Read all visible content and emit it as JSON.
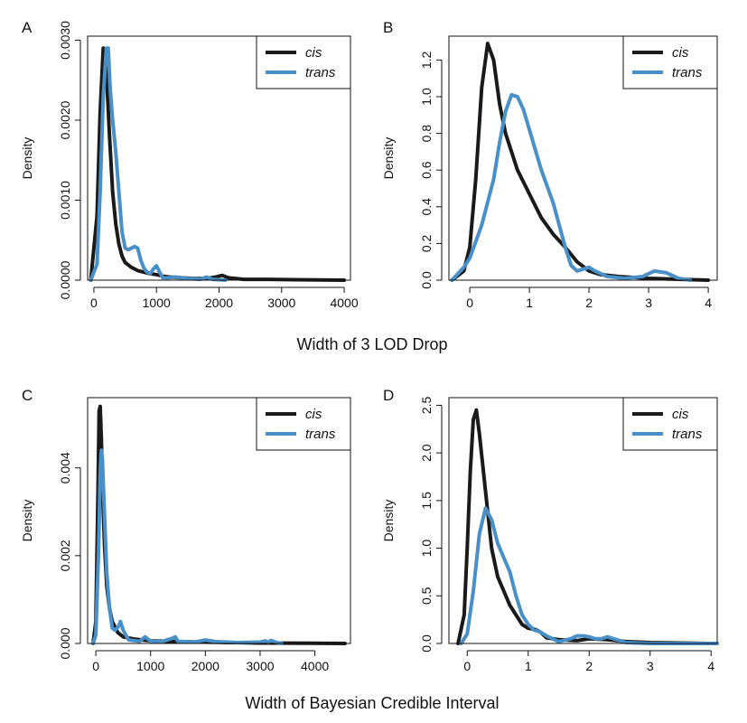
{
  "colors": {
    "cis": "#1a1a1a",
    "trans": "#4a90c8",
    "baseline": "#bbbbbb"
  },
  "shared_labels": {
    "top": "Width of 3 LOD Drop",
    "bottom": "Width of Bayesian Credible Interval"
  },
  "chart_data": [
    {
      "type": "line",
      "panel": "A",
      "ylabel": "Density",
      "xlim": [
        -100,
        4100
      ],
      "ylim": [
        0,
        0.00305
      ],
      "x_ticks": [
        0,
        1000,
        2000,
        3000,
        4000
      ],
      "x_tick_labels": [
        "0",
        "1000",
        "2000",
        "3000",
        "4000"
      ],
      "y_ticks": [
        0,
        0.001,
        0.002,
        0.003
      ],
      "y_tick_labels": [
        "0.0000",
        "0.0010",
        "0.0020",
        "0.0030"
      ],
      "legend_position": "top-right",
      "series": [
        {
          "name": "cis",
          "x": [
            -50,
            50,
            100,
            150,
            200,
            250,
            300,
            350,
            400,
            450,
            500,
            600,
            700,
            800,
            900,
            1000,
            1100,
            1200,
            1400,
            1600,
            1800,
            1950,
            2050,
            2150,
            2400,
            2800,
            3200,
            3600,
            4000
          ],
          "y": [
            0,
            0.0008,
            0.0021,
            0.0029,
            0.0026,
            0.0018,
            0.0011,
            0.0007,
            0.00045,
            0.0003,
            0.00022,
            0.00016,
            0.00012,
            0.0001,
            8e-05,
            7e-05,
            5e-05,
            4e-05,
            3e-05,
            2e-05,
            2e-05,
            4e-05,
            6e-05,
            3e-05,
            1e-05,
            1e-05,
            5e-06,
            3e-06,
            0
          ]
        },
        {
          "name": "trans",
          "x": [
            -50,
            50,
            100,
            150,
            200,
            230,
            260,
            300,
            350,
            400,
            450,
            500,
            550,
            600,
            650,
            700,
            750,
            800,
            850,
            900,
            950,
            1000,
            1050,
            1100,
            1200,
            1300,
            1500,
            1700,
            1800,
            1900,
            2000,
            2100
          ],
          "y": [
            0,
            0.0002,
            0.0011,
            0.0023,
            0.0029,
            0.0029,
            0.0024,
            0.002,
            0.0016,
            0.0011,
            0.0006,
            0.0004,
            0.00038,
            0.0004,
            0.00042,
            0.0004,
            0.00025,
            0.00015,
            0.0001,
            8e-05,
            0.00014,
            0.00018,
            0.0001,
            3e-05,
            3e-05,
            4e-05,
            2e-05,
            1e-05,
            4e-05,
            1e-05,
            5e-06,
            0
          ]
        }
      ]
    },
    {
      "type": "line",
      "panel": "B",
      "ylabel": "Density",
      "xlim": [
        -0.35,
        4.15
      ],
      "ylim": [
        0,
        1.33
      ],
      "x_ticks": [
        0,
        1,
        2,
        3,
        4
      ],
      "x_tick_labels": [
        "0",
        "1",
        "2",
        "3",
        "4"
      ],
      "y_ticks": [
        0,
        0.2,
        0.4,
        0.6,
        0.8,
        1.0,
        1.2
      ],
      "y_tick_labels": [
        "0.0",
        "0.2",
        "0.4",
        "0.6",
        "0.8",
        "1.0",
        "1.2"
      ],
      "legend_position": "top-right",
      "series": [
        {
          "name": "cis",
          "x": [
            -0.3,
            -0.1,
            0.0,
            0.1,
            0.2,
            0.3,
            0.4,
            0.5,
            0.6,
            0.7,
            0.8,
            1.0,
            1.2,
            1.4,
            1.6,
            1.8,
            2.0,
            2.2,
            2.5,
            3.0,
            3.5,
            4.0
          ],
          "y": [
            0,
            0.05,
            0.18,
            0.55,
            1.05,
            1.29,
            1.2,
            0.96,
            0.8,
            0.7,
            0.6,
            0.47,
            0.34,
            0.25,
            0.18,
            0.1,
            0.05,
            0.03,
            0.02,
            0.01,
            0.005,
            0
          ]
        },
        {
          "name": "trans",
          "x": [
            -0.3,
            -0.1,
            0.0,
            0.2,
            0.4,
            0.5,
            0.6,
            0.7,
            0.8,
            0.9,
            1.0,
            1.2,
            1.4,
            1.6,
            1.7,
            1.8,
            1.9,
            2.0,
            2.1,
            2.3,
            2.6,
            2.9,
            3.1,
            3.3,
            3.5,
            3.7
          ],
          "y": [
            0,
            0.07,
            0.12,
            0.3,
            0.55,
            0.75,
            0.92,
            1.01,
            1.0,
            0.93,
            0.82,
            0.6,
            0.42,
            0.18,
            0.08,
            0.05,
            0.06,
            0.07,
            0.05,
            0.02,
            0.01,
            0.02,
            0.05,
            0.04,
            0.01,
            0
          ]
        }
      ]
    },
    {
      "type": "line",
      "panel": "C",
      "ylabel": "Density",
      "xlim": [
        -150,
        4650
      ],
      "ylim": [
        0,
        0.0056
      ],
      "x_ticks": [
        0,
        1000,
        2000,
        3000,
        4000
      ],
      "x_tick_labels": [
        "0",
        "1000",
        "2000",
        "3000",
        "4000"
      ],
      "y_ticks": [
        0,
        0.002,
        0.004
      ],
      "y_tick_labels": [
        "0.000",
        "0.002",
        "0.004"
      ],
      "legend_position": "top-right",
      "series": [
        {
          "name": "cis",
          "x": [
            -50,
            0,
            40,
            60,
            80,
            100,
            130,
            160,
            200,
            250,
            300,
            400,
            500,
            700,
            1000,
            1500,
            2000,
            2500,
            3000,
            3500,
            4000,
            4550
          ],
          "y": [
            0,
            0.0005,
            0.0035,
            0.0053,
            0.0054,
            0.0047,
            0.0032,
            0.0022,
            0.0013,
            0.0008,
            0.0005,
            0.00025,
            0.00015,
            0.0001,
            6e-05,
            4e-05,
            3e-05,
            2e-05,
            1e-05,
            8e-06,
            4e-06,
            0
          ]
        },
        {
          "name": "trans",
          "x": [
            -50,
            0,
            50,
            80,
            100,
            120,
            150,
            200,
            250,
            300,
            350,
            420,
            450,
            500,
            600,
            800,
            900,
            1000,
            1200,
            1400,
            1450,
            1500,
            1800,
            2000,
            2200,
            2600,
            3000,
            3100,
            3150,
            3200,
            3300,
            3400
          ],
          "y": [
            0,
            0.0002,
            0.0021,
            0.0039,
            0.0044,
            0.0042,
            0.0032,
            0.0016,
            0.0008,
            0.00035,
            0.0003,
            0.0004,
            0.0005,
            0.0003,
            8e-05,
            5e-05,
            0.00015,
            5e-05,
            4e-05,
            0.00012,
            0.00015,
            5e-05,
            3e-05,
            8e-05,
            4e-05,
            2e-05,
            3e-05,
            6e-05,
            2e-05,
            7e-05,
            2e-05,
            0
          ]
        }
      ]
    },
    {
      "type": "line",
      "panel": "D",
      "ylabel": "Density",
      "xlim": [
        -0.3,
        4.1
      ],
      "ylim": [
        0,
        2.58
      ],
      "x_ticks": [
        0,
        1,
        2,
        3,
        4
      ],
      "x_tick_labels": [
        "0",
        "1",
        "2",
        "3",
        "4"
      ],
      "y_ticks": [
        0,
        0.5,
        1.0,
        1.5,
        2.0,
        2.5
      ],
      "y_tick_labels": [
        "0.0",
        "0.5",
        "1.0",
        "1.5",
        "2.0",
        "2.5"
      ],
      "legend_position": "top-right",
      "series": [
        {
          "name": "cis",
          "x": [
            -0.15,
            -0.05,
            0.0,
            0.05,
            0.1,
            0.15,
            0.2,
            0.3,
            0.4,
            0.5,
            0.6,
            0.7,
            0.8,
            0.9,
            1.0,
            1.1,
            1.2,
            1.3,
            1.5,
            1.8,
            2.0,
            2.3,
            2.6,
            3.0,
            3.5,
            4.0
          ],
          "y": [
            0,
            0.3,
            1.0,
            1.8,
            2.35,
            2.45,
            2.2,
            1.6,
            1.0,
            0.7,
            0.55,
            0.4,
            0.3,
            0.2,
            0.16,
            0.15,
            0.12,
            0.06,
            0.04,
            0.03,
            0.05,
            0.04,
            0.02,
            0.01,
            0.005,
            0
          ]
        },
        {
          "name": "trans",
          "x": [
            -0.1,
            0.0,
            0.1,
            0.2,
            0.3,
            0.4,
            0.5,
            0.6,
            0.7,
            0.8,
            0.9,
            1.0,
            1.1,
            1.2,
            1.3,
            1.5,
            1.7,
            1.8,
            1.9,
            2.0,
            2.1,
            2.2,
            2.3,
            2.4,
            2.6,
            2.8,
            3.0,
            3.5,
            4.1
          ],
          "y": [
            0,
            0.1,
            0.55,
            1.15,
            1.42,
            1.3,
            1.05,
            0.9,
            0.75,
            0.5,
            0.3,
            0.2,
            0.14,
            0.12,
            0.08,
            0.02,
            0.05,
            0.08,
            0.08,
            0.07,
            0.05,
            0.05,
            0.07,
            0.05,
            0.01,
            0.005,
            0,
            0,
            0
          ]
        }
      ]
    }
  ]
}
